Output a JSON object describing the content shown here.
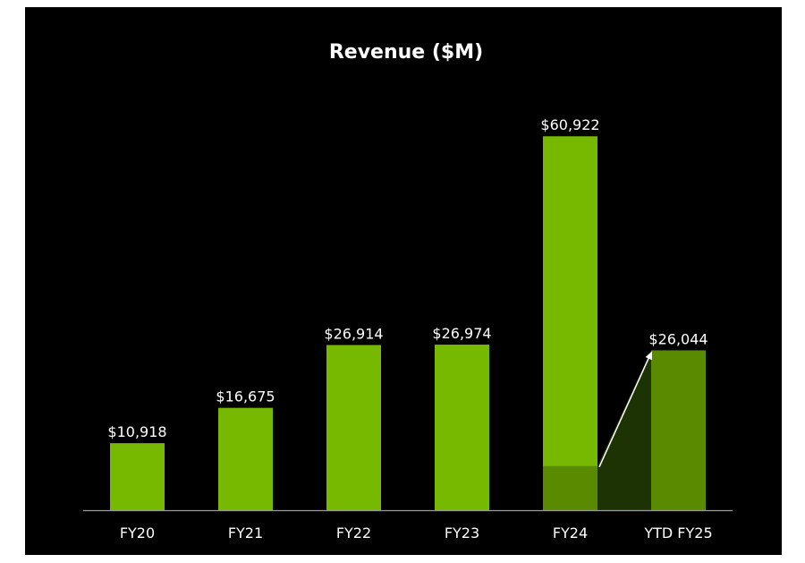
{
  "chart_data": {
    "type": "bar",
    "title": "Revenue ($M)",
    "categories": [
      "FY20",
      "FY21",
      "FY22",
      "FY23",
      "FY24",
      "YTD FY25"
    ],
    "values": [
      10918,
      16675,
      26914,
      26974,
      60922,
      26044
    ],
    "value_labels": [
      "$10,918",
      "$16,675",
      "$26,914",
      "$26,974",
      "$60,922",
      "$26,044"
    ],
    "ylim": [
      0,
      63000
    ],
    "grid": false,
    "legend": "none",
    "highlight": {
      "from_category": "FY24",
      "to_category": "YTD FY25",
      "from_value": 7192,
      "to_value": 26044
    },
    "colors": {
      "bar": "#76b900",
      "bar_dark": "#5a8a00",
      "band": "#1e3304",
      "background": "#000000",
      "axis": "#9a9a9a",
      "text": "#ffffff"
    }
  }
}
